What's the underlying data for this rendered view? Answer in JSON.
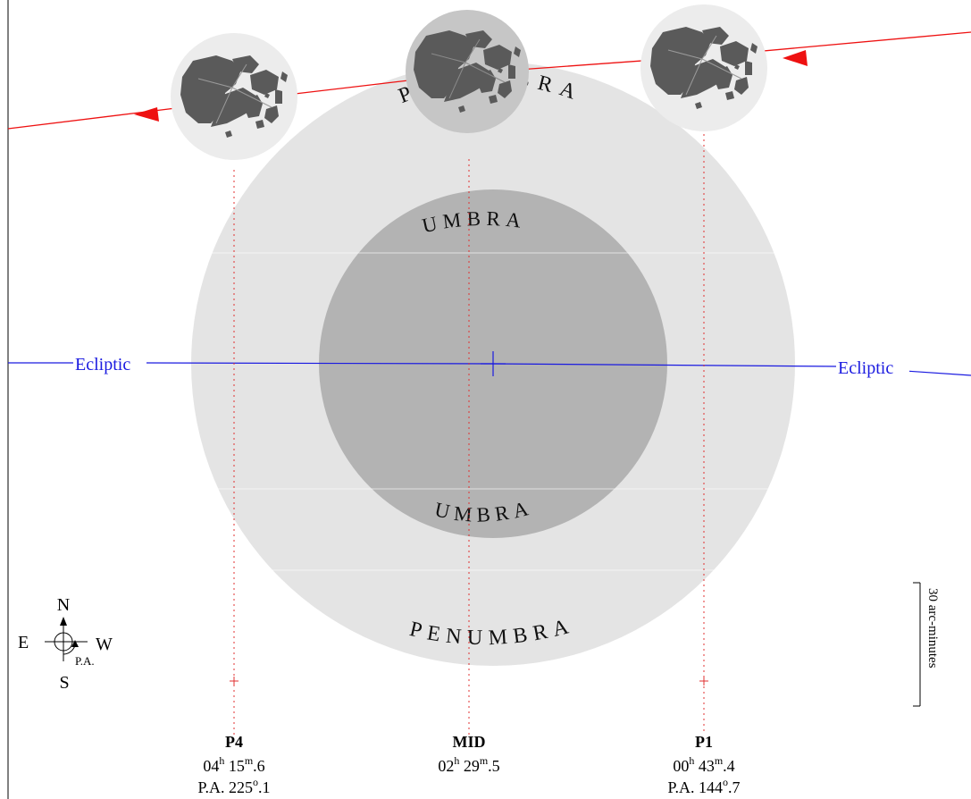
{
  "labels": {
    "penumbra_top": "PENUMBRA",
    "penumbra_bottom": "PENUMBRA",
    "umbra_top": "UMBRA",
    "umbra_bottom": "UMBRA",
    "ecliptic_left": "Ecliptic",
    "ecliptic_right": "Ecliptic",
    "scale": "30 arc-minutes"
  },
  "compass": {
    "north": "N",
    "south": "S",
    "east": "E",
    "west": "W",
    "pa": "P.A."
  },
  "contacts": [
    {
      "name": "P4",
      "hours": "04",
      "h_unit": "h",
      "minutes": "15",
      "m_unit": "m",
      "decimal": "6",
      "pa_label": "P.A.",
      "pa_deg": "225",
      "deg_unit": "o",
      "pa_decimal": "1"
    },
    {
      "name": "MID",
      "hours": "02",
      "h_unit": "h",
      "minutes": "29",
      "m_unit": "m",
      "decimal": "5"
    },
    {
      "name": "P1",
      "hours": "00",
      "h_unit": "h",
      "minutes": "43",
      "m_unit": "m",
      "decimal": "4",
      "pa_label": "P.A.",
      "pa_deg": "144",
      "deg_unit": "o",
      "pa_decimal": "7"
    }
  ],
  "colors": {
    "penumbra": "#e4e4e4",
    "umbra": "#b3b3b3",
    "moon_path": "#ee1111",
    "ecliptic": "#1a1ae0",
    "maria": "#5a5a5a",
    "moon_disk": "#ececec",
    "moon_mid": "#c6c6c6",
    "contact_line": "#e03030"
  }
}
